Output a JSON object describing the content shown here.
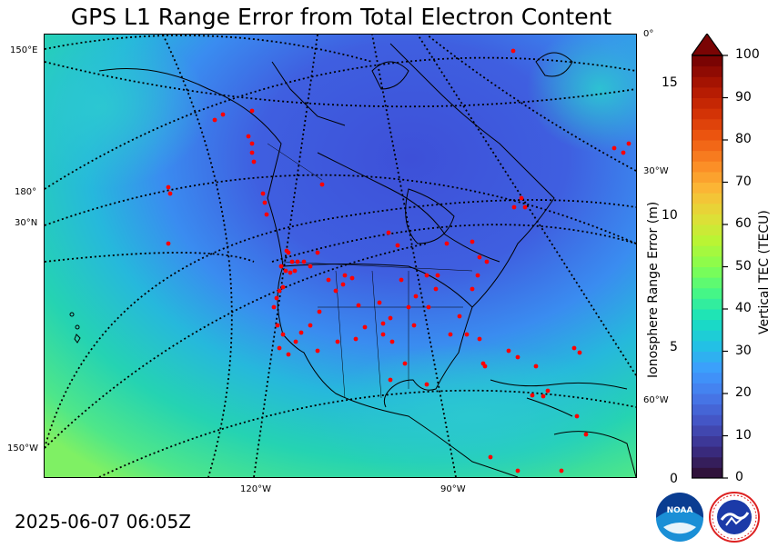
{
  "title": "GPS L1 Range Error from Total Electron Content",
  "timestamp": "2025-06-07 06:05Z",
  "map": {
    "graticule_labels": {
      "lon_150E": "150°E",
      "lon_180": "180°",
      "lat_30N": "30°N",
      "lon_150W": "150°W",
      "lon_120W": "120°W",
      "lon_90W": "90°W",
      "lon_0": "0°",
      "lon_30W": "30°W",
      "lon_60W": "60°W"
    },
    "colors": {
      "tec_low_blue": "#3f5fe0",
      "tec_mid_cyan": "#22c9c6",
      "tec_green": "#5fe07a",
      "station_marker": "#ff0000",
      "coastline": "#000000"
    }
  },
  "colorbar": {
    "left_label": "Ionosphere Range Error (m)",
    "right_label": "Vertical TEC (TECU)",
    "left_ticks": [
      "0",
      "5",
      "10",
      "15"
    ],
    "right_ticks": [
      "0",
      "10",
      "20",
      "30",
      "40",
      "50",
      "60",
      "70",
      "80",
      "90",
      "100"
    ],
    "extend": "max",
    "colormap": "turbo"
  },
  "logos": {
    "noaa": {
      "text": "NOAA",
      "icon": "noaa-logo-icon"
    },
    "nws": {
      "text": "NATIONAL WEATHER SERVICE",
      "icon": "nws-logo-icon"
    }
  }
}
